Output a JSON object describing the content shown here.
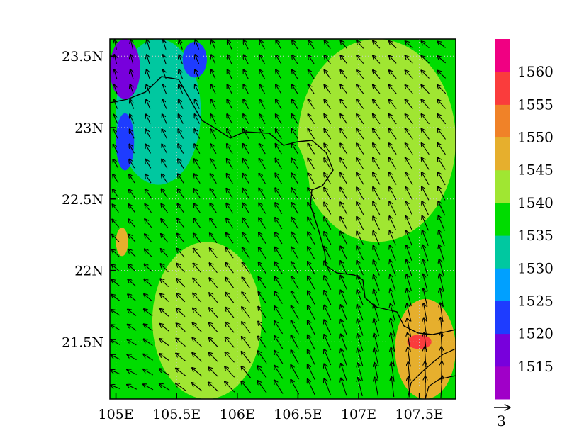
{
  "chart_data": {
    "type": "heatmap",
    "title": "",
    "x_ticks": [
      "105E",
      "105.5E",
      "106E",
      "106.5E",
      "107E",
      "107.5E"
    ],
    "x_tick_values": [
      105.0,
      105.5,
      106.0,
      106.5,
      107.0,
      107.5
    ],
    "y_ticks": [
      "23.5N",
      "23N",
      "22.5N",
      "22N",
      "21.5N"
    ],
    "y_tick_values": [
      23.5,
      23.0,
      22.5,
      22.0,
      21.5
    ],
    "xlim": [
      104.95,
      107.8
    ],
    "ylim": [
      21.1,
      23.62
    ],
    "grid": "dotted",
    "colorbar": {
      "levels": [
        "1515",
        "1520",
        "1525",
        "1530",
        "1535",
        "1540",
        "1545",
        "1550",
        "1555",
        "1560"
      ],
      "level_values": [
        1515,
        1520,
        1525,
        1530,
        1535,
        1540,
        1545,
        1550,
        1555,
        1560
      ],
      "colors": [
        "#a000c8",
        "#7800dc",
        "#1e3cff",
        "#00a0ff",
        "#00c8a0",
        "#00dc00",
        "#a0e632",
        "#e6af2d",
        "#f08228",
        "#fa3c3c",
        "#f00082"
      ]
    },
    "field_regions": [
      {
        "lon": [
          105.3,
          106.2
        ],
        "lat": [
          21.1,
          22.2
        ],
        "value": 1542
      },
      {
        "lon": [
          106.5,
          107.8
        ],
        "lat": [
          22.2,
          23.62
        ],
        "value": 1543
      },
      {
        "lon": [
          106.0,
          106.6
        ],
        "lat": [
          22.0,
          23.0
        ],
        "value": 1538
      },
      {
        "lon": [
          105.0,
          105.7
        ],
        "lat": [
          22.6,
          23.62
        ],
        "value": 1531
      },
      {
        "lon": [
          104.95,
          105.2
        ],
        "lat": [
          23.2,
          23.62
        ],
        "value": 1519
      },
      {
        "lon": [
          105.0,
          105.15
        ],
        "lat": [
          22.7,
          23.1
        ],
        "value": 1524
      },
      {
        "lon": [
          105.55,
          105.75
        ],
        "lat": [
          23.35,
          23.6
        ],
        "value": 1522
      },
      {
        "lon": [
          107.3,
          107.8
        ],
        "lat": [
          21.1,
          21.8
        ],
        "value": 1548
      },
      {
        "lon": [
          107.4,
          107.6
        ],
        "lat": [
          21.45,
          21.55
        ],
        "value": 1556
      },
      {
        "lon": [
          105.0,
          105.1
        ],
        "lat": [
          22.1,
          22.3
        ],
        "value": 1547
      }
    ],
    "wind_vector_reference": {
      "label": "3",
      "magnitude": 3
    }
  }
}
